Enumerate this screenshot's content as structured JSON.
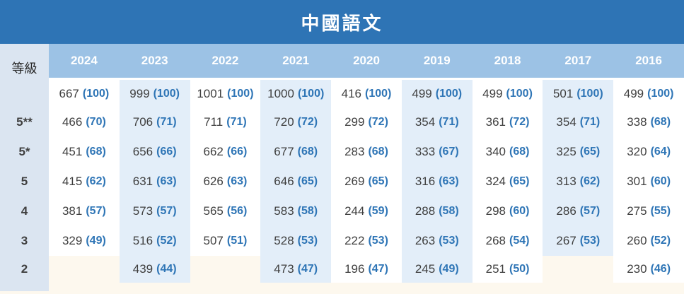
{
  "page": {
    "title": "中國語文",
    "grade_header_label": "等級"
  },
  "colors": {
    "title_bar": "#2e74b5",
    "year_band": "#9cc2e5",
    "label_column": "#dbe5f1",
    "stripe_column": "#e3eef9",
    "page_background": "#fdf8ee",
    "value_text": "#3f3f3f",
    "share_text": "#2e75b6",
    "header_text": "#ffffff"
  },
  "table": {
    "years": [
      "2024",
      "2023",
      "2022",
      "2021",
      "2020",
      "2019",
      "2018",
      "2017",
      "2016"
    ],
    "striped_year_columns": [
      "2023",
      "2021",
      "2019",
      "2017"
    ],
    "rows": [
      {
        "label": "",
        "cells": [
          {
            "value": "667",
            "share": "(100)"
          },
          {
            "value": "999",
            "share": "(100)"
          },
          {
            "value": "1001",
            "share": "(100)"
          },
          {
            "value": "1000",
            "share": "(100)"
          },
          {
            "value": "416",
            "share": "(100)"
          },
          {
            "value": "499",
            "share": "(100)"
          },
          {
            "value": "499",
            "share": "(100)"
          },
          {
            "value": "501",
            "share": "(100)"
          },
          {
            "value": "499",
            "share": "(100)"
          }
        ]
      },
      {
        "label": "5**",
        "cells": [
          {
            "value": "466",
            "share": "(70)"
          },
          {
            "value": "706",
            "share": "(71)"
          },
          {
            "value": "711",
            "share": "(71)"
          },
          {
            "value": "720",
            "share": "(72)"
          },
          {
            "value": "299",
            "share": "(72)"
          },
          {
            "value": "354",
            "share": "(71)"
          },
          {
            "value": "361",
            "share": "(72)"
          },
          {
            "value": "354",
            "share": "(71)"
          },
          {
            "value": "338",
            "share": "(68)"
          }
        ]
      },
      {
        "label": "5*",
        "cells": [
          {
            "value": "451",
            "share": "(68)"
          },
          {
            "value": "656",
            "share": "(66)"
          },
          {
            "value": "662",
            "share": "(66)"
          },
          {
            "value": "677",
            "share": "(68)"
          },
          {
            "value": "283",
            "share": "(68)"
          },
          {
            "value": "333",
            "share": "(67)"
          },
          {
            "value": "340",
            "share": "(68)"
          },
          {
            "value": "325",
            "share": "(65)"
          },
          {
            "value": "320",
            "share": "(64)"
          }
        ]
      },
      {
        "label": "5",
        "cells": [
          {
            "value": "415",
            "share": "(62)"
          },
          {
            "value": "631",
            "share": "(63)"
          },
          {
            "value": "626",
            "share": "(63)"
          },
          {
            "value": "646",
            "share": "(65)"
          },
          {
            "value": "269",
            "share": "(65)"
          },
          {
            "value": "316",
            "share": "(63)"
          },
          {
            "value": "324",
            "share": "(65)"
          },
          {
            "value": "313",
            "share": "(62)"
          },
          {
            "value": "301",
            "share": "(60)"
          }
        ]
      },
      {
        "label": "4",
        "cells": [
          {
            "value": "381",
            "share": "(57)"
          },
          {
            "value": "573",
            "share": "(57)"
          },
          {
            "value": "565",
            "share": "(56)"
          },
          {
            "value": "583",
            "share": "(58)"
          },
          {
            "value": "244",
            "share": "(59)"
          },
          {
            "value": "288",
            "share": "(58)"
          },
          {
            "value": "298",
            "share": "(60)"
          },
          {
            "value": "286",
            "share": "(57)"
          },
          {
            "value": "275",
            "share": "(55)"
          }
        ]
      },
      {
        "label": "3",
        "cells": [
          {
            "value": "329",
            "share": "(49)"
          },
          {
            "value": "516",
            "share": "(52)"
          },
          {
            "value": "507",
            "share": "(51)"
          },
          {
            "value": "528",
            "share": "(53)"
          },
          {
            "value": "222",
            "share": "(53)"
          },
          {
            "value": "263",
            "share": "(53)"
          },
          {
            "value": "268",
            "share": "(54)"
          },
          {
            "value": "267",
            "share": "(53)"
          },
          {
            "value": "260",
            "share": "(52)"
          }
        ]
      },
      {
        "label": "2",
        "cells": [
          null,
          {
            "value": "439",
            "share": "(44)"
          },
          null,
          {
            "value": "473",
            "share": "(47)"
          },
          {
            "value": "196",
            "share": "(47)"
          },
          {
            "value": "245",
            "share": "(49)"
          },
          {
            "value": "251",
            "share": "(50)"
          },
          null,
          {
            "value": "230",
            "share": "(46)"
          }
        ]
      }
    ]
  }
}
